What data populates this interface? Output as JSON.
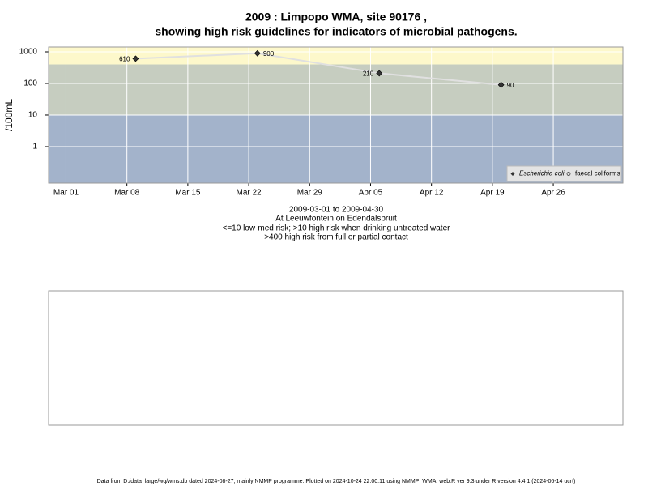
{
  "chart_data": {
    "type": "line",
    "title": "2009 : Limpopo WMA, site 90176 ,",
    "subtitle": "showing high risk guidelines for indicators of microbial pathogens.",
    "y_label": "/100mL",
    "captions": [
      "2009-03-01 to 2009-04-30",
      "At Leeuwfontein on Edendalspruit",
      "<=10 low-med risk; >10 high risk when drinking untreated water",
      ">400 high risk from full or partial contact"
    ],
    "footer": "Data from D:/data_large/wq/wms.db dated 2024-08-27, mainly NMMP programme. Plotted on 2024-10-24 22:00:11 using NMMP_WMA_web.R ver 9.3 under R version 4.4.1 (2024-06-14 ucrt)",
    "x": [
      "2009-03-09",
      "2009-03-23",
      "2009-04-06",
      "2009-04-20"
    ],
    "series": [
      {
        "name": "Escherichia coli",
        "color": "#333333",
        "values": [
          610,
          900,
          210,
          90
        ]
      },
      {
        "name": "faecal coliforms",
        "color": "#333333",
        "values": [
          null,
          null,
          null,
          null
        ]
      }
    ],
    "line_color": "#e0e0e0",
    "xlim": [
      "2009-02-27",
      "2009-05-04"
    ],
    "xticks": [
      {
        "value": "2009-03-01",
        "label": "Mar 01"
      },
      {
        "value": "2009-03-08",
        "label": "Mar 08"
      },
      {
        "value": "2009-03-15",
        "label": "Mar 15"
      },
      {
        "value": "2009-03-22",
        "label": "Mar 22"
      },
      {
        "value": "2009-03-29",
        "label": "Mar 29"
      },
      {
        "value": "2009-04-05",
        "label": "Apr 05"
      },
      {
        "value": "2009-04-12",
        "label": "Apr 12"
      },
      {
        "value": "2009-04-19",
        "label": "Apr 19"
      },
      {
        "value": "2009-04-26",
        "label": "Apr 26"
      }
    ],
    "ylim": [
      0.07,
      1425
    ],
    "yticks": [
      1,
      10,
      100,
      1000
    ],
    "log_y": true,
    "grid": true,
    "thresholds": [
      10,
      400
    ],
    "band_colors": [
      "#a3b3cb",
      "#c6cdc0",
      "#fdf8cb"
    ],
    "legend": "bottom-right"
  }
}
